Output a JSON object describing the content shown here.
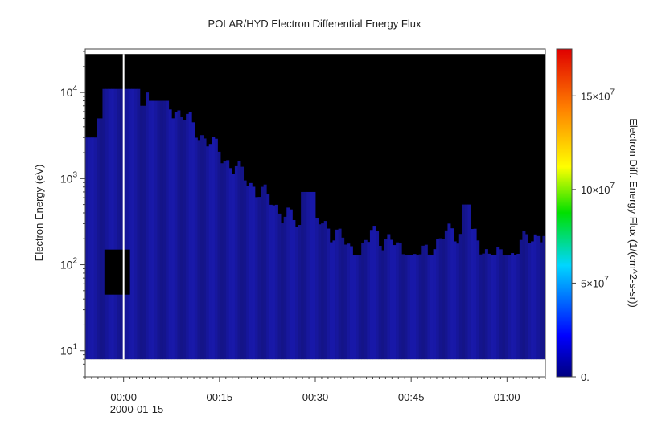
{
  "chart_data": {
    "type": "heatmap",
    "title": "POLAR/HYD  Electron Differential Energy Flux",
    "xlabel": "",
    "ylabel": "Electron Energy (eV)",
    "colorbar_label": "Electron Diff. Energy Flux (1/(cm^2-s-sr))",
    "x_ticks": [
      "00:00",
      "00:15",
      "00:30",
      "00:45",
      "01:00"
    ],
    "x_date_label": "2000-01-15",
    "x_range": [
      "2000-01-14 23:54",
      "2000-01-15 01:06"
    ],
    "y_scale": "log",
    "y_range": [
      5,
      32000
    ],
    "y_tick_values": [
      10,
      100,
      1000,
      10000
    ],
    "y_tick_bases": [
      "10",
      "10",
      "10",
      "10"
    ],
    "y_tick_exponents": [
      "1",
      "2",
      "3",
      "4"
    ],
    "colorbar_range": [
      0,
      175000000.0
    ],
    "colorbar_scale": "rainbow",
    "colorbar_ticks": [
      {
        "value": 0,
        "mantissa": "0.",
        "exponent": ""
      },
      {
        "value": 50000000.0,
        "mantissa": "5×10",
        "exponent": "7"
      },
      {
        "value": 100000000.0,
        "mantissa": "10×10",
        "exponent": "7"
      },
      {
        "value": 150000000.0,
        "mantissa": "15×10",
        "exponent": "7"
      }
    ],
    "data_energy_range_ev": [
      8,
      28000
    ],
    "data_gap_time": "00:00",
    "colors": {
      "fill_blue": "#1a1aa8",
      "no_data": "#000000",
      "gap_line": "#ffffff"
    }
  }
}
